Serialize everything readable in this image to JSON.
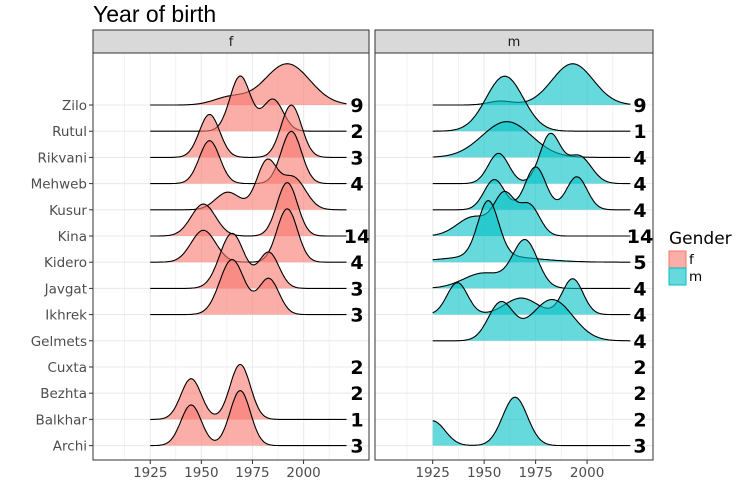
{
  "chart_data": {
    "type": "ridgeline",
    "title": "Year of birth",
    "xlim": [
      1897,
      2032
    ],
    "x_ticks": [
      1925,
      1950,
      1975,
      2000
    ],
    "grid": true,
    "legend_position": "right",
    "legend": {
      "title": "Gender",
      "entries": [
        {
          "label": "f",
          "color": "#F8766D"
        },
        {
          "label": "m",
          "color": "#00BFC4"
        }
      ]
    },
    "categories": [
      "Zilo",
      "Rutul",
      "Rikvani",
      "Mehweb",
      "Kusur",
      "Kina",
      "Kidero",
      "Javgat",
      "Ikhrek",
      "Gelmets",
      "Cuxta",
      "Bezhta",
      "Balkhar",
      "Archi"
    ],
    "panels": [
      {
        "label": "f",
        "color": "#F8766D",
        "series": [
          {
            "category": "Zilo",
            "count": "9",
            "peaks": [
              [
                1964,
                0.14,
                8
              ],
              [
                1992,
                0.75,
                11
              ]
            ]
          },
          {
            "category": "Rutul",
            "count": "2",
            "peaks": [
              [
                1969,
                1.0,
                5
              ],
              [
                1985,
                0.58,
                5
              ]
            ]
          },
          {
            "category": "Rikvani",
            "count": "3",
            "peaks": [
              [
                1954,
                0.78,
                5
              ],
              [
                1994,
                0.95,
                5
              ]
            ]
          },
          {
            "category": "Mehweb",
            "count": "4",
            "peaks": [
              [
                1954,
                0.78,
                5
              ],
              [
                1994,
                0.95,
                5
              ]
            ]
          },
          {
            "category": "Kusur",
            "count": "",
            "peaks": [
              [
                1963,
                0.32,
                6
              ],
              [
                1982,
                0.86,
                5
              ],
              [
                1995,
                0.58,
                6
              ]
            ]
          },
          {
            "category": "Kina",
            "count": "14",
            "peaks": [
              [
                1951,
                0.58,
                6
              ],
              [
                1992,
                0.97,
                5
              ]
            ]
          },
          {
            "category": "Kidero",
            "count": "4",
            "peaks": [
              [
                1951,
                0.58,
                6
              ],
              [
                1992,
                0.97,
                5
              ]
            ]
          },
          {
            "category": "Javgat",
            "count": "3",
            "peaks": [
              [
                1965,
                1.0,
                6
              ],
              [
                1983,
                0.65,
                5
              ]
            ]
          },
          {
            "category": "Ikhrek",
            "count": "3",
            "peaks": [
              [
                1965,
                1.0,
                6
              ],
              [
                1983,
                0.65,
                5
              ]
            ]
          },
          {
            "category": "Gelmets",
            "count": "",
            "peaks": []
          },
          {
            "category": "Cuxta",
            "count": "2",
            "peaks": []
          },
          {
            "category": "Bezhta",
            "count": "2",
            "peaks": []
          },
          {
            "category": "Balkhar",
            "count": "1",
            "peaks": [
              [
                1945,
                0.74,
                5
              ],
              [
                1969,
                1.0,
                5
              ]
            ]
          },
          {
            "category": "Archi",
            "count": "3",
            "peaks": [
              [
                1945,
                0.74,
                5
              ],
              [
                1969,
                1.0,
                5
              ]
            ]
          }
        ]
      },
      {
        "label": "m",
        "color": "#00BFC4",
        "series": [
          {
            "category": "Zilo",
            "count": "9",
            "peaks": [
              [
                1958,
                0.07,
                6
              ],
              [
                1993,
                0.75,
                10
              ]
            ]
          },
          {
            "category": "Rutul",
            "count": "1",
            "peaks": [
              [
                1960,
                1.0,
                9
              ]
            ]
          },
          {
            "category": "Rikvani",
            "count": "4",
            "peaks": [
              [
                1961,
                0.65,
                12
              ]
            ]
          },
          {
            "category": "Mehweb",
            "count": "4",
            "peaks": [
              [
                1957,
                0.55,
                5
              ],
              [
                1982,
                0.88,
                5
              ],
              [
                1996,
                0.5,
                6
              ]
            ]
          },
          {
            "category": "Kusur",
            "count": "4",
            "peaks": [
              [
                1955,
                0.55,
                5
              ],
              [
                1975,
                0.78,
                5
              ],
              [
                1995,
                0.6,
                5
              ]
            ]
          },
          {
            "category": "Kina",
            "count": "14",
            "peaks": [
              [
                1945,
                0.35,
                8
              ],
              [
                1960,
                0.72,
                5
              ],
              [
                1972,
                0.55,
                5
              ]
            ]
          },
          {
            "category": "Kidero",
            "count": "5",
            "peaks": [
              [
                1952,
                1.0,
                5
              ],
              [
                1953,
                0.12,
                20
              ]
            ]
          },
          {
            "category": "Javgat",
            "count": "4",
            "peaks": [
              [
                1950,
                0.28,
                10
              ],
              [
                1970,
                0.85,
                6
              ]
            ]
          },
          {
            "category": "Ikhrek",
            "count": "4",
            "peaks": [
              [
                1937,
                0.58,
                5
              ],
              [
                1968,
                0.3,
                8
              ],
              [
                1993,
                0.65,
                5
              ]
            ]
          },
          {
            "category": "Gelmets",
            "count": "4",
            "peaks": [
              [
                1958,
                0.68,
                6
              ],
              [
                1983,
                0.75,
                10
              ]
            ]
          },
          {
            "category": "Cuxta",
            "count": "2",
            "peaks": []
          },
          {
            "category": "Bezhta",
            "count": "2",
            "peaks": []
          },
          {
            "category": "Balkhar",
            "count": "2",
            "peaks": []
          },
          {
            "category": "Archi",
            "count": "3",
            "peaks": [
              [
                1925,
                0.45,
                6
              ],
              [
                1965,
                0.88,
                6
              ]
            ]
          }
        ]
      }
    ]
  }
}
